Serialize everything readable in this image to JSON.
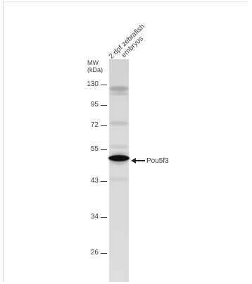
{
  "lane": {
    "line1": "2 dpf zebrafish",
    "line2": "embryos"
  },
  "mw": {
    "title_line1": "MW",
    "title_line2": "(kDa)",
    "markers": [
      "130",
      "95",
      "72",
      "55",
      "43",
      "34",
      "26"
    ]
  },
  "target": {
    "label": "Pou5f3",
    "arrow_icon": "left-arrow-icon"
  }
}
